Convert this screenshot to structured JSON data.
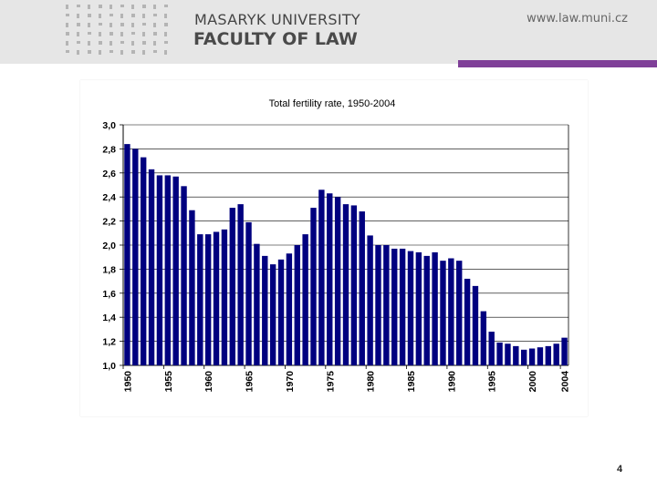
{
  "header": {
    "university": "MASARYK UNIVERSITY",
    "faculty": "FACULTY OF LAW",
    "url": "www.law.muni.cz",
    "accent_color": "#7f3f98"
  },
  "page_number": "4",
  "chart_data": {
    "type": "bar",
    "title": "Total fertility rate, 1950-2004",
    "xlabel": "",
    "ylabel": "",
    "ylim": [
      1.0,
      3.0
    ],
    "yticks": [
      "1,0",
      "1,2",
      "1,4",
      "1,6",
      "1,8",
      "2,0",
      "2,2",
      "2,4",
      "2,6",
      "2,8",
      "3,0"
    ],
    "xtick_labels": [
      "1950",
      "1955",
      "1960",
      "1965",
      "1970",
      "1975",
      "1980",
      "1985",
      "1990",
      "1995",
      "2000",
      "2004"
    ],
    "grid": "horizontal",
    "bar_color": "#00007f",
    "categories": [
      1950,
      1951,
      1952,
      1953,
      1954,
      1955,
      1956,
      1957,
      1958,
      1959,
      1960,
      1961,
      1962,
      1963,
      1964,
      1965,
      1966,
      1967,
      1968,
      1969,
      1970,
      1971,
      1972,
      1973,
      1974,
      1975,
      1976,
      1977,
      1978,
      1979,
      1980,
      1981,
      1982,
      1983,
      1984,
      1985,
      1986,
      1987,
      1988,
      1989,
      1990,
      1991,
      1992,
      1993,
      1994,
      1995,
      1996,
      1997,
      1998,
      1999,
      2000,
      2001,
      2002,
      2003,
      2004
    ],
    "values": [
      2.84,
      2.8,
      2.73,
      2.63,
      2.58,
      2.58,
      2.57,
      2.49,
      2.29,
      2.09,
      2.09,
      2.11,
      2.13,
      2.31,
      2.34,
      2.19,
      2.01,
      1.91,
      1.84,
      1.88,
      1.93,
      2.0,
      2.09,
      2.31,
      2.46,
      2.43,
      2.4,
      2.34,
      2.33,
      2.28,
      2.08,
      2.0,
      2.0,
      1.97,
      1.97,
      1.95,
      1.94,
      1.91,
      1.94,
      1.87,
      1.89,
      1.87,
      1.72,
      1.66,
      1.45,
      1.28,
      1.19,
      1.18,
      1.16,
      1.13,
      1.14,
      1.15,
      1.16,
      1.18,
      1.23
    ]
  }
}
